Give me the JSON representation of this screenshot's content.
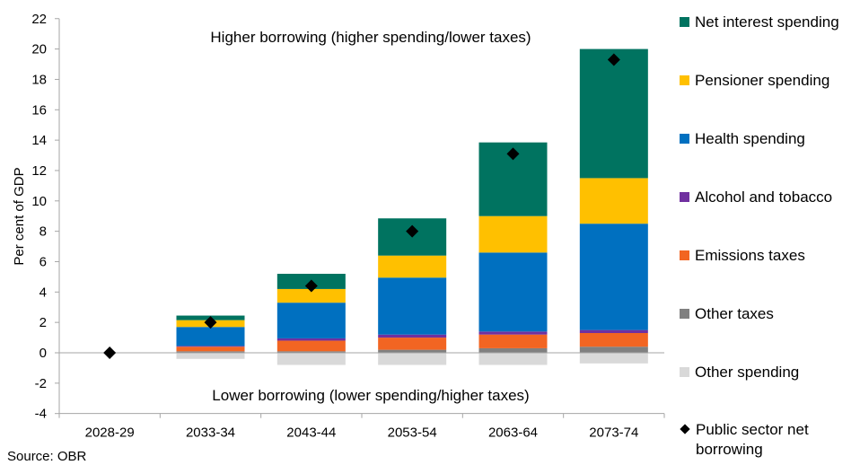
{
  "chart_data": {
    "type": "bar",
    "stacked": true,
    "ylabel": "Per cent of GDP",
    "ylim": [
      -4,
      22
    ],
    "yticks": [
      -4,
      -2,
      0,
      2,
      4,
      6,
      8,
      10,
      12,
      14,
      16,
      18,
      20,
      22
    ],
    "categories": [
      "2028-29",
      "2033-34",
      "2043-44",
      "2053-54",
      "2063-64",
      "2073-74"
    ],
    "annotations": {
      "top": "Higher borrowing (higher spending/lower taxes)",
      "bottom": "Lower borrowing (lower spending/higher taxes)"
    },
    "series": [
      {
        "name": "Other spending",
        "color": "#d9d9d9",
        "values": [
          0,
          -0.4,
          -0.8,
          -0.8,
          -0.8,
          -0.7
        ]
      },
      {
        "name": "Other taxes",
        "color": "#808080",
        "values": [
          0,
          0.1,
          0.1,
          0.2,
          0.3,
          0.4
        ]
      },
      {
        "name": "Emissions taxes",
        "color": "#f26522",
        "values": [
          0,
          0.3,
          0.7,
          0.8,
          0.9,
          0.9
        ]
      },
      {
        "name": "Alcohol and tobacco",
        "color": "#7030a0",
        "values": [
          0,
          0.05,
          0.15,
          0.2,
          0.2,
          0.2
        ]
      },
      {
        "name": "Health spending",
        "color": "#0070c0",
        "values": [
          0,
          1.25,
          2.35,
          3.75,
          5.2,
          7.0
        ]
      },
      {
        "name": "Pensioner spending",
        "color": "#ffc000",
        "values": [
          0,
          0.45,
          0.9,
          1.45,
          2.4,
          3.0
        ]
      },
      {
        "name": "Net interest spending",
        "color": "#007360",
        "values": [
          0,
          0.3,
          1.0,
          2.45,
          4.85,
          8.5
        ]
      }
    ],
    "markers": {
      "name": "Public sector net borrowing",
      "values": [
        0,
        2.0,
        4.4,
        8.0,
        13.1,
        19.3
      ]
    },
    "legend_position": "right",
    "grid": false
  },
  "legend": [
    {
      "label": "Net interest spending",
      "color": "#007360",
      "kind": "box"
    },
    {
      "label": "Pensioner spending",
      "color": "#ffc000",
      "kind": "box"
    },
    {
      "label": "Health spending",
      "color": "#0070c0",
      "kind": "box"
    },
    {
      "label": "Alcohol and tobacco",
      "color": "#7030a0",
      "kind": "box"
    },
    {
      "label": "Emissions taxes",
      "color": "#f26522",
      "kind": "box"
    },
    {
      "label": "Other taxes",
      "color": "#808080",
      "kind": "box"
    },
    {
      "label": "Other spending",
      "color": "#d9d9d9",
      "kind": "box"
    },
    {
      "label": "Public sector net borrowing",
      "color": "#000000",
      "kind": "diamond"
    }
  ],
  "source": "Source: OBR"
}
